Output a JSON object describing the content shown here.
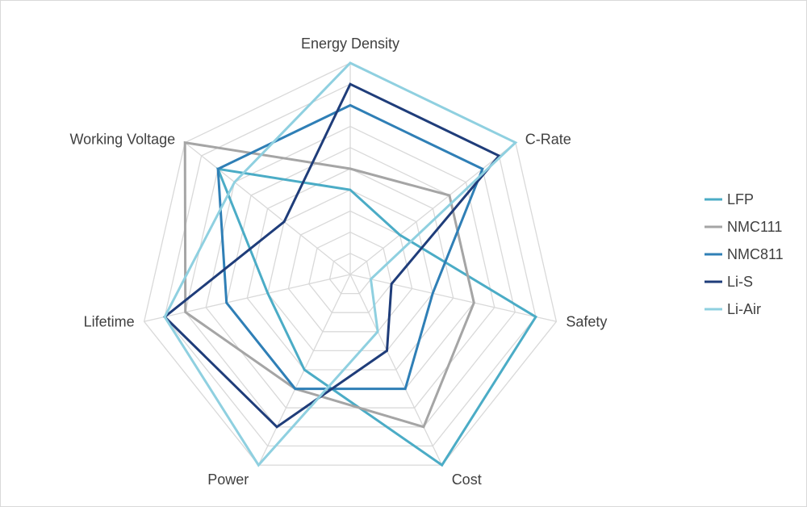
{
  "chart_data": {
    "type": "radar",
    "title": "",
    "axes": [
      "Energy Density",
      "C-Rate",
      "Safety",
      "Cost",
      "Power",
      "Lifetime",
      "Working Voltage"
    ],
    "rlim": [
      0,
      10
    ],
    "rings": 10,
    "grid": true,
    "legend_position": "right",
    "series": [
      {
        "name": "LFP",
        "color": "#4bacc6",
        "values": [
          4,
          3,
          9,
          10,
          5,
          4,
          8
        ]
      },
      {
        "name": "NMC111",
        "color": "#a5a5a5",
        "values": [
          5,
          6,
          6,
          8,
          6,
          8,
          10
        ]
      },
      {
        "name": "NMC811",
        "color": "#2f7fb6",
        "values": [
          8,
          8,
          4,
          6,
          6,
          6,
          8
        ]
      },
      {
        "name": "Li-S",
        "color": "#1f3d7a",
        "values": [
          9,
          9,
          2,
          4,
          8,
          9,
          4
        ]
      },
      {
        "name": "Li-Air",
        "color": "#8fd0e0",
        "values": [
          10,
          10,
          1,
          3,
          10,
          9,
          7
        ]
      }
    ]
  }
}
